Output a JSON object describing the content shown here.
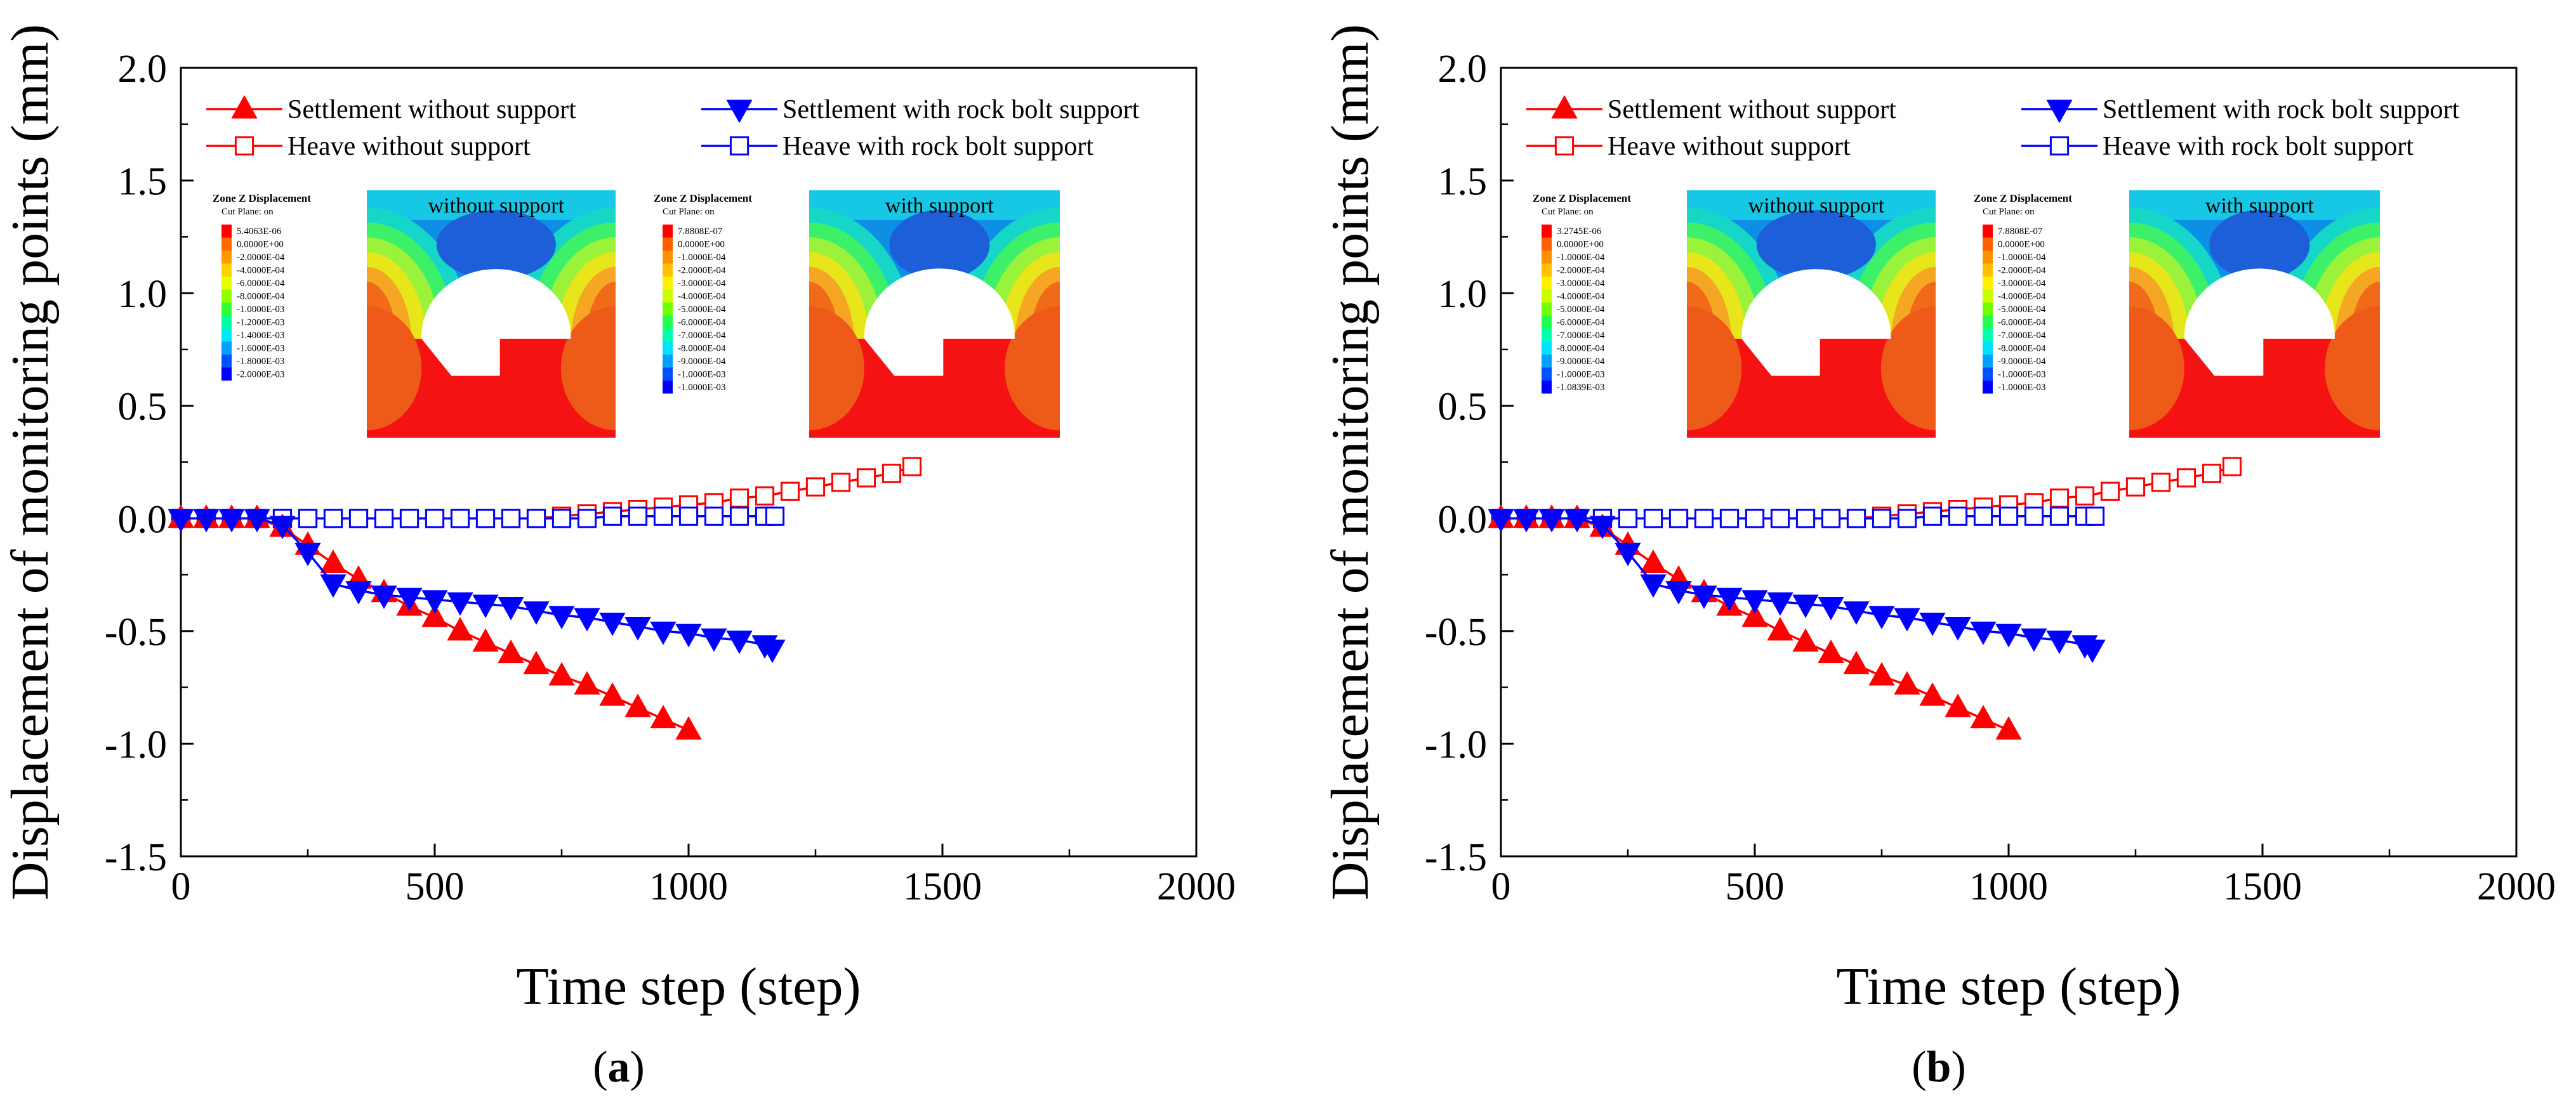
{
  "panels": [
    {
      "label": "a",
      "inset_left": {
        "title": "Zone Z Displacement",
        "subtitle": "Cut Plane: on",
        "legend": [
          "5.4063E-06",
          "0.0000E+00",
          "-2.0000E-04",
          "-4.0000E-04",
          "-6.0000E-04",
          "-8.0000E-04",
          "-1.0000E-03",
          "-1.2000E-03",
          "-1.4000E-03",
          "-1.6000E-03",
          "-1.8000E-03",
          "-2.0000E-03"
        ],
        "colors": [
          "#ff0000",
          "#ff6a00",
          "#ff9a00",
          "#ffd200",
          "#e8ff00",
          "#90ff00",
          "#30ff30",
          "#00ffa0",
          "#00e6ff",
          "#00a0ff",
          "#0050ff",
          "#0000ff"
        ],
        "caption": "without support"
      },
      "inset_right": {
        "title": "Zone Z Displacement",
        "subtitle": "Cut Plane: on",
        "legend": [
          "7.8808E-07",
          "0.0000E+00",
          "-1.0000E-04",
          "-2.0000E-04",
          "-3.0000E-04",
          "-4.0000E-04",
          "-5.0000E-04",
          "-6.0000E-04",
          "-7.0000E-04",
          "-8.0000E-04",
          "-9.0000E-04",
          "-1.0000E-03",
          "-1.0000E-03"
        ],
        "colors": [
          "#ff0000",
          "#ff6000",
          "#ff9000",
          "#ffc000",
          "#fff000",
          "#c8ff00",
          "#70ff00",
          "#20ff50",
          "#00ffb0",
          "#00e0ff",
          "#00a0ff",
          "#0050ff",
          "#0000ff"
        ],
        "caption": "with support"
      }
    },
    {
      "label": "b",
      "inset_left": {
        "title": "Zone Z Displacement",
        "subtitle": "Cut Plane: on",
        "legend": [
          "3.2745E-06",
          "0.0000E+00",
          "-1.0000E-04",
          "-2.0000E-04",
          "-3.0000E-04",
          "-4.0000E-04",
          "-5.0000E-04",
          "-6.0000E-04",
          "-7.0000E-04",
          "-8.0000E-04",
          "-9.0000E-04",
          "-1.0000E-03",
          "-1.0839E-03"
        ],
        "colors": [
          "#ff0000",
          "#ff6000",
          "#ff9000",
          "#ffc000",
          "#fff000",
          "#c8ff00",
          "#70ff00",
          "#20ff50",
          "#00ffb0",
          "#00e0ff",
          "#00a0ff",
          "#0050ff",
          "#0000ff"
        ],
        "caption": "without support"
      },
      "inset_right": {
        "title": "Zone Z Displacement",
        "subtitle": "Cut Plane: on",
        "legend": [
          "7.8808E-07",
          "0.0000E+00",
          "-1.0000E-04",
          "-2.0000E-04",
          "-3.0000E-04",
          "-4.0000E-04",
          "-5.0000E-04",
          "-6.0000E-04",
          "-7.0000E-04",
          "-8.0000E-04",
          "-9.0000E-04",
          "-1.0000E-03",
          "-1.0000E-03"
        ],
        "colors": [
          "#ff0000",
          "#ff6000",
          "#ff9000",
          "#ffc000",
          "#fff000",
          "#c8ff00",
          "#70ff00",
          "#20ff50",
          "#00ffb0",
          "#00e0ff",
          "#00a0ff",
          "#0050ff",
          "#0000ff"
        ],
        "caption": "with support"
      }
    }
  ],
  "chart_data": [
    {
      "type": "line",
      "panel": "a",
      "title": "",
      "xlabel": "Time step (step)",
      "ylabel": "Displacement of monitoring points (mm)",
      "xlim": [
        0,
        2000
      ],
      "ylim": [
        -1.5,
        2.0
      ],
      "xticks": [
        "0",
        "500",
        "1000",
        "1500",
        "2000"
      ],
      "yticks": [
        "2.0",
        "1.5",
        "1.0",
        "0.5",
        "0.0",
        "-0.5",
        "-1.0",
        "-1.5"
      ],
      "legend_position": "top",
      "series": [
        {
          "name": "Settlement without support",
          "color": "#ff0000",
          "marker": "triangle-up",
          "filled": true,
          "x": [
            0,
            50,
            100,
            150,
            200,
            250,
            300,
            350,
            400,
            450,
            500,
            550,
            600,
            650,
            700,
            750,
            800,
            850,
            900,
            950,
            1000
          ],
          "y": [
            0,
            0,
            0,
            0,
            -0.04,
            -0.12,
            -0.2,
            -0.27,
            -0.33,
            -0.39,
            -0.44,
            -0.5,
            -0.55,
            -0.6,
            -0.65,
            -0.7,
            -0.74,
            -0.79,
            -0.84,
            -0.89,
            -0.94
          ]
        },
        {
          "name": "Settlement with rock bolt support",
          "color": "#0000ff",
          "marker": "triangle-down",
          "filled": true,
          "x": [
            0,
            50,
            100,
            150,
            200,
            250,
            300,
            350,
            400,
            450,
            500,
            550,
            600,
            650,
            700,
            750,
            800,
            850,
            900,
            950,
            1000,
            1050,
            1100,
            1150,
            1165
          ],
          "y": [
            0,
            0,
            0,
            0,
            -0.03,
            -0.15,
            -0.29,
            -0.32,
            -0.34,
            -0.35,
            -0.36,
            -0.37,
            -0.38,
            -0.39,
            -0.41,
            -0.43,
            -0.44,
            -0.46,
            -0.48,
            -0.5,
            -0.51,
            -0.53,
            -0.54,
            -0.56,
            -0.58
          ]
        },
        {
          "name": "Heave without support",
          "color": "#ff0000",
          "marker": "square",
          "filled": false,
          "x": [
            0,
            50,
            100,
            150,
            200,
            250,
            300,
            350,
            400,
            450,
            500,
            550,
            600,
            650,
            700,
            750,
            800,
            850,
            900,
            950,
            1000,
            1050,
            1100,
            1150,
            1200,
            1250,
            1300,
            1350,
            1400,
            1440
          ],
          "y": [
            0,
            0,
            0,
            0,
            0,
            0,
            0,
            0,
            0,
            0,
            0,
            0,
            0,
            0,
            0,
            0.01,
            0.02,
            0.03,
            0.04,
            0.05,
            0.06,
            0.07,
            0.09,
            0.1,
            0.12,
            0.14,
            0.16,
            0.18,
            0.2,
            0.23
          ]
        },
        {
          "name": "Heave with rock bolt support",
          "color": "#0000ff",
          "marker": "square",
          "filled": false,
          "x": [
            0,
            50,
            100,
            150,
            200,
            250,
            300,
            350,
            400,
            450,
            500,
            550,
            600,
            650,
            700,
            750,
            800,
            850,
            900,
            950,
            1000,
            1050,
            1100,
            1150,
            1170
          ],
          "y": [
            0,
            0,
            0,
            0,
            0,
            0,
            0,
            0,
            0,
            0,
            0,
            0,
            0,
            0,
            0,
            0,
            0,
            0.01,
            0.01,
            0.01,
            0.01,
            0.01,
            0.01,
            0.01,
            0.01
          ]
        }
      ]
    },
    {
      "type": "line",
      "panel": "b",
      "title": "",
      "xlabel": "Time step (step)",
      "ylabel": "Displacement of monitoring points (mm)",
      "xlim": [
        0,
        2000
      ],
      "ylim": [
        -1.5,
        2.0
      ],
      "xticks": [
        "0",
        "500",
        "1000",
        "1500",
        "2000"
      ],
      "yticks": [
        "2.0",
        "1.5",
        "1.0",
        "0.5",
        "0.0",
        "-0.5",
        "-1.0",
        "-1.5"
      ],
      "legend_position": "top",
      "series": [
        {
          "name": "Settlement without support",
          "color": "#ff0000",
          "marker": "triangle-up",
          "filled": true,
          "x": [
            0,
            50,
            100,
            150,
            200,
            250,
            300,
            350,
            400,
            450,
            500,
            550,
            600,
            650,
            700,
            750,
            800,
            850,
            900,
            950,
            1000
          ],
          "y": [
            0,
            0,
            0,
            0,
            -0.04,
            -0.12,
            -0.2,
            -0.27,
            -0.33,
            -0.39,
            -0.44,
            -0.5,
            -0.55,
            -0.6,
            -0.65,
            -0.7,
            -0.74,
            -0.79,
            -0.84,
            -0.89,
            -0.94
          ]
        },
        {
          "name": "Settlement with rock bolt support",
          "color": "#0000ff",
          "marker": "triangle-down",
          "filled": true,
          "x": [
            0,
            50,
            100,
            150,
            200,
            250,
            300,
            350,
            400,
            450,
            500,
            550,
            600,
            650,
            700,
            750,
            800,
            850,
            900,
            950,
            1000,
            1050,
            1100,
            1150,
            1165
          ],
          "y": [
            0,
            0,
            0,
            0,
            -0.03,
            -0.15,
            -0.29,
            -0.32,
            -0.34,
            -0.35,
            -0.36,
            -0.37,
            -0.38,
            -0.39,
            -0.41,
            -0.43,
            -0.44,
            -0.46,
            -0.48,
            -0.5,
            -0.51,
            -0.53,
            -0.54,
            -0.56,
            -0.58
          ]
        },
        {
          "name": "Heave without support",
          "color": "#ff0000",
          "marker": "square",
          "filled": false,
          "x": [
            0,
            50,
            100,
            150,
            200,
            250,
            300,
            350,
            400,
            450,
            500,
            550,
            600,
            650,
            700,
            750,
            800,
            850,
            900,
            950,
            1000,
            1050,
            1100,
            1150,
            1200,
            1250,
            1300,
            1350,
            1400,
            1440
          ],
          "y": [
            0,
            0,
            0,
            0,
            0,
            0,
            0,
            0,
            0,
            0,
            0,
            0,
            0,
            0,
            0,
            0.01,
            0.02,
            0.03,
            0.04,
            0.05,
            0.06,
            0.07,
            0.09,
            0.1,
            0.12,
            0.14,
            0.16,
            0.18,
            0.2,
            0.23
          ]
        },
        {
          "name": "Heave with rock bolt support",
          "color": "#0000ff",
          "marker": "square",
          "filled": false,
          "x": [
            0,
            50,
            100,
            150,
            200,
            250,
            300,
            350,
            400,
            450,
            500,
            550,
            600,
            650,
            700,
            750,
            800,
            850,
            900,
            950,
            1000,
            1050,
            1100,
            1150,
            1170
          ],
          "y": [
            0,
            0,
            0,
            0,
            0,
            0,
            0,
            0,
            0,
            0,
            0,
            0,
            0,
            0,
            0,
            0,
            0,
            0.01,
            0.01,
            0.01,
            0.01,
            0.01,
            0.01,
            0.01,
            0.01
          ]
        }
      ]
    }
  ]
}
